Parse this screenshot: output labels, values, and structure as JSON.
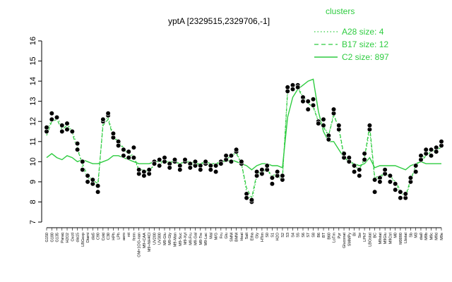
{
  "chart_data": {
    "type": "line",
    "title": "yptA [2329515,2329706,-1]",
    "xlabel": "",
    "ylabel": "",
    "ylim": [
      7,
      16
    ],
    "yticks": [
      7,
      8,
      9,
      10,
      11,
      12,
      13,
      14,
      15,
      16
    ],
    "grid": false,
    "legend": {
      "title": "clusters",
      "placement": "top-right",
      "entries": [
        {
          "label": "A28 size: 4",
          "style": "dotted"
        },
        {
          "label": "B17 size: 12",
          "style": "dashed"
        },
        {
          "label": "C2 size: 897",
          "style": "solid"
        }
      ]
    },
    "x_tick_labels": [
      "G150",
      "G180",
      "G135",
      "Paraq",
      "H2O2",
      "Oxctl",
      "dia15",
      "LBGexp",
      "Diami",
      "dia5",
      "C90",
      "Cold",
      "C30",
      "HPh",
      "LPh",
      "aero",
      "nit",
      "ferm",
      "OM+1OG-nan",
      "M9+CAA",
      "M9+NH4Cl",
      "UV200",
      "UV300",
      "M9-Glu",
      "M9-Gly",
      "M9-Man",
      "M9-Suc",
      "M9-Xyl",
      "M9-Fru",
      "M9-Gal",
      "M9-Tre",
      "M9-Lac",
      "Mal",
      "M/G",
      "Fru",
      "Glu",
      "SMM",
      "BMM",
      "Heat",
      "Salt",
      "Etha",
      "Gly",
      "HTim",
      "S0",
      "S1",
      "H2O",
      "S2",
      "S3",
      "S4",
      "S5",
      "S6",
      "S7",
      "S8",
      "B6",
      "BT",
      "B60",
      "LoTm",
      "Pyr",
      "Gluconat",
      "SMMPy",
      "Bl",
      "Sw",
      "LPh7",
      "LBGstat",
      "BC",
      "M9stat",
      "M9Glu",
      "M9Ctrl",
      "M0",
      "M0090",
      "Lbstat",
      "Sb",
      "M3",
      "dia0",
      "M9b",
      "M9c",
      "M9d",
      "M9e"
    ],
    "series": [
      {
        "name": "A28 size: 4",
        "style": "dotted",
        "values": [
          11.5,
          12.1,
          12.2,
          11.8,
          11.9,
          11.5,
          10.8,
          9.7,
          9.2,
          9.0,
          8.7,
          12.0,
          12.2,
          11.3,
          11.0,
          10.6,
          10.4,
          10.3,
          9.5,
          9.5,
          9.4,
          9.9,
          9.9,
          10.0,
          9.9,
          10.0,
          9.8,
          10.0,
          9.9,
          9.8,
          9.8,
          9.9,
          9.8,
          9.8,
          10.0,
          10.1,
          10.3,
          10.5,
          9.9,
          8.5,
          8.0,
          9.3,
          9.4,
          9.6,
          9.2,
          9.3,
          9.1,
          13.6,
          13.8,
          13.8,
          13.2,
          13.0,
          12.8,
          12.0,
          11.8,
          11.3,
          12.4,
          11.6,
          10.2,
          10.0,
          9.8,
          9.6,
          10.1,
          11.6,
          9.1,
          9.2,
          9.4,
          9.3,
          8.9,
          8.5,
          8.2,
          9.0,
          9.8,
          10.1,
          10.4,
          10.6,
          10.7,
          10.8
        ]
      },
      {
        "name": "B17 size: 12",
        "style": "dashed",
        "values": [
          11.3,
          12.0,
          12.1,
          11.6,
          11.8,
          11.4,
          10.6,
          9.9,
          9.3,
          9.1,
          8.9,
          11.8,
          12.1,
          11.2,
          11.0,
          10.7,
          10.3,
          10.3,
          9.6,
          9.6,
          9.5,
          9.9,
          10.0,
          10.0,
          9.9,
          10.0,
          9.9,
          10.0,
          9.9,
          9.8,
          9.9,
          9.9,
          9.8,
          9.8,
          10.0,
          10.1,
          10.3,
          10.4,
          9.9,
          8.7,
          8.2,
          9.4,
          9.5,
          9.6,
          9.3,
          9.4,
          9.2,
          13.4,
          13.6,
          13.7,
          13.1,
          12.9,
          12.7,
          12.0,
          11.7,
          11.3,
          12.3,
          11.7,
          10.3,
          10.0,
          9.8,
          9.6,
          10.2,
          11.8,
          9.2,
          9.3,
          9.4,
          9.3,
          9.0,
          8.6,
          8.3,
          9.1,
          9.8,
          10.0,
          10.3,
          10.5,
          10.6,
          10.7
        ]
      },
      {
        "name": "C2 size: 897",
        "style": "solid",
        "values": [
          10.2,
          10.4,
          10.2,
          10.1,
          10.3,
          10.2,
          10.0,
          10.1,
          10.0,
          9.9,
          9.9,
          10.0,
          10.1,
          10.3,
          10.3,
          10.2,
          10.1,
          10.0,
          9.9,
          9.9,
          9.9,
          10.0,
          10.0,
          10.0,
          10.0,
          10.0,
          9.9,
          10.0,
          10.0,
          9.9,
          9.9,
          10.0,
          9.9,
          9.9,
          10.0,
          10.0,
          10.1,
          10.0,
          9.9,
          9.8,
          9.6,
          9.8,
          9.9,
          9.9,
          9.8,
          9.8,
          9.7,
          12.2,
          13.2,
          13.6,
          13.8,
          14.0,
          14.1,
          12.5,
          11.5,
          11.0,
          11.0,
          10.6,
          10.2,
          10.0,
          9.9,
          9.8,
          9.9,
          10.2,
          9.7,
          9.8,
          9.8,
          9.8,
          9.8,
          9.7,
          9.6,
          9.8,
          9.9,
          10.0,
          9.9,
          9.9,
          9.9,
          9.9
        ]
      }
    ],
    "points": [
      {
        "x": 0,
        "y": 11.5
      },
      {
        "x": 0,
        "y": 11.7
      },
      {
        "x": 1,
        "y": 12.1
      },
      {
        "x": 1,
        "y": 12.4
      },
      {
        "x": 2,
        "y": 12.2
      },
      {
        "x": 3,
        "y": 11.5
      },
      {
        "x": 3,
        "y": 11.8
      },
      {
        "x": 4,
        "y": 11.9
      },
      {
        "x": 4,
        "y": 11.6
      },
      {
        "x": 5,
        "y": 11.5
      },
      {
        "x": 6,
        "y": 10.9
      },
      {
        "x": 6,
        "y": 10.6
      },
      {
        "x": 7,
        "y": 9.6
      },
      {
        "x": 7,
        "y": 10.0
      },
      {
        "x": 8,
        "y": 9.3
      },
      {
        "x": 8,
        "y": 9.0
      },
      {
        "x": 9,
        "y": 8.9
      },
      {
        "x": 9,
        "y": 9.1
      },
      {
        "x": 10,
        "y": 8.5
      },
      {
        "x": 10,
        "y": 8.8
      },
      {
        "x": 11,
        "y": 12.0
      },
      {
        "x": 11,
        "y": 12.1
      },
      {
        "x": 12,
        "y": 12.3
      },
      {
        "x": 12,
        "y": 12.4
      },
      {
        "x": 13,
        "y": 11.2
      },
      {
        "x": 13,
        "y": 11.4
      },
      {
        "x": 14,
        "y": 11.0
      },
      {
        "x": 14,
        "y": 10.8
      },
      {
        "x": 15,
        "y": 10.6
      },
      {
        "x": 15,
        "y": 10.3
      },
      {
        "x": 16,
        "y": 10.5
      },
      {
        "x": 16,
        "y": 10.2
      },
      {
        "x": 17,
        "y": 10.7
      },
      {
        "x": 17,
        "y": 10.2
      },
      {
        "x": 18,
        "y": 9.4
      },
      {
        "x": 18,
        "y": 9.6
      },
      {
        "x": 19,
        "y": 9.5
      },
      {
        "x": 19,
        "y": 9.3
      },
      {
        "x": 20,
        "y": 9.4
      },
      {
        "x": 20,
        "y": 9.6
      },
      {
        "x": 21,
        "y": 10.0
      },
      {
        "x": 21,
        "y": 9.9
      },
      {
        "x": 22,
        "y": 10.1
      },
      {
        "x": 22,
        "y": 9.8
      },
      {
        "x": 23,
        "y": 10.0
      },
      {
        "x": 23,
        "y": 10.2
      },
      {
        "x": 24,
        "y": 9.9
      },
      {
        "x": 24,
        "y": 9.7
      },
      {
        "x": 25,
        "y": 10.0
      },
      {
        "x": 25,
        "y": 10.1
      },
      {
        "x": 26,
        "y": 9.8
      },
      {
        "x": 26,
        "y": 9.6
      },
      {
        "x": 27,
        "y": 10.0
      },
      {
        "x": 27,
        "y": 10.1
      },
      {
        "x": 28,
        "y": 9.9
      },
      {
        "x": 28,
        "y": 9.7
      },
      {
        "x": 29,
        "y": 9.8
      },
      {
        "x": 29,
        "y": 10.0
      },
      {
        "x": 30,
        "y": 9.8
      },
      {
        "x": 30,
        "y": 9.6
      },
      {
        "x": 31,
        "y": 9.9
      },
      {
        "x": 31,
        "y": 10.0
      },
      {
        "x": 32,
        "y": 9.8
      },
      {
        "x": 32,
        "y": 9.6
      },
      {
        "x": 33,
        "y": 9.8
      },
      {
        "x": 33,
        "y": 9.5
      },
      {
        "x": 34,
        "y": 10.0
      },
      {
        "x": 34,
        "y": 9.9
      },
      {
        "x": 35,
        "y": 10.1
      },
      {
        "x": 35,
        "y": 10.3
      },
      {
        "x": 36,
        "y": 10.3
      },
      {
        "x": 36,
        "y": 10.0
      },
      {
        "x": 37,
        "y": 10.5
      },
      {
        "x": 37,
        "y": 10.6
      },
      {
        "x": 38,
        "y": 9.9
      },
      {
        "x": 38,
        "y": 10.0
      },
      {
        "x": 39,
        "y": 8.4
      },
      {
        "x": 39,
        "y": 8.2
      },
      {
        "x": 40,
        "y": 8.0
      },
      {
        "x": 40,
        "y": 8.1
      },
      {
        "x": 41,
        "y": 9.3
      },
      {
        "x": 41,
        "y": 9.5
      },
      {
        "x": 42,
        "y": 9.4
      },
      {
        "x": 42,
        "y": 9.6
      },
      {
        "x": 43,
        "y": 9.6
      },
      {
        "x": 43,
        "y": 9.8
      },
      {
        "x": 44,
        "y": 9.2
      },
      {
        "x": 44,
        "y": 8.9
      },
      {
        "x": 45,
        "y": 9.3
      },
      {
        "x": 45,
        "y": 9.5
      },
      {
        "x": 46,
        "y": 9.1
      },
      {
        "x": 46,
        "y": 9.3
      },
      {
        "x": 47,
        "y": 13.5
      },
      {
        "x": 47,
        "y": 13.7
      },
      {
        "x": 48,
        "y": 13.8
      },
      {
        "x": 48,
        "y": 13.6
      },
      {
        "x": 49,
        "y": 13.8
      },
      {
        "x": 49,
        "y": 13.7
      },
      {
        "x": 50,
        "y": 13.2
      },
      {
        "x": 50,
        "y": 13.0
      },
      {
        "x": 51,
        "y": 13.0
      },
      {
        "x": 51,
        "y": 12.6
      },
      {
        "x": 52,
        "y": 12.8
      },
      {
        "x": 52,
        "y": 13.1
      },
      {
        "x": 53,
        "y": 12.0
      },
      {
        "x": 53,
        "y": 11.9
      },
      {
        "x": 54,
        "y": 11.8
      },
      {
        "x": 54,
        "y": 12.1
      },
      {
        "x": 55,
        "y": 11.3
      },
      {
        "x": 55,
        "y": 11.1
      },
      {
        "x": 56,
        "y": 12.4
      },
      {
        "x": 56,
        "y": 12.6
      },
      {
        "x": 57,
        "y": 11.6
      },
      {
        "x": 57,
        "y": 11.8
      },
      {
        "x": 58,
        "y": 10.2
      },
      {
        "x": 58,
        "y": 10.4
      },
      {
        "x": 59,
        "y": 10.0
      },
      {
        "x": 59,
        "y": 10.2
      },
      {
        "x": 60,
        "y": 9.8
      },
      {
        "x": 60,
        "y": 9.5
      },
      {
        "x": 61,
        "y": 9.6
      },
      {
        "x": 61,
        "y": 9.3
      },
      {
        "x": 62,
        "y": 10.1
      },
      {
        "x": 62,
        "y": 10.4
      },
      {
        "x": 63,
        "y": 11.6
      },
      {
        "x": 63,
        "y": 11.8
      },
      {
        "x": 64,
        "y": 9.1
      },
      {
        "x": 64,
        "y": 8.5
      },
      {
        "x": 65,
        "y": 9.2
      },
      {
        "x": 65,
        "y": 9.0
      },
      {
        "x": 66,
        "y": 9.4
      },
      {
        "x": 66,
        "y": 9.6
      },
      {
        "x": 67,
        "y": 9.3
      },
      {
        "x": 67,
        "y": 9.0
      },
      {
        "x": 68,
        "y": 8.9
      },
      {
        "x": 68,
        "y": 8.6
      },
      {
        "x": 69,
        "y": 8.5
      },
      {
        "x": 69,
        "y": 8.2
      },
      {
        "x": 70,
        "y": 8.2
      },
      {
        "x": 70,
        "y": 8.4
      },
      {
        "x": 71,
        "y": 9.0
      },
      {
        "x": 71,
        "y": 9.2
      },
      {
        "x": 72,
        "y": 9.8
      },
      {
        "x": 72,
        "y": 9.5
      },
      {
        "x": 73,
        "y": 10.1
      },
      {
        "x": 73,
        "y": 10.3
      },
      {
        "x": 74,
        "y": 10.4
      },
      {
        "x": 74,
        "y": 10.6
      },
      {
        "x": 75,
        "y": 10.6
      },
      {
        "x": 75,
        "y": 10.3
      },
      {
        "x": 76,
        "y": 10.7
      },
      {
        "x": 76,
        "y": 10.5
      },
      {
        "x": 77,
        "y": 10.8
      },
      {
        "x": 77,
        "y": 11.0
      }
    ]
  },
  "colors": {
    "accent": "#2ecc40",
    "points": "#000000"
  }
}
